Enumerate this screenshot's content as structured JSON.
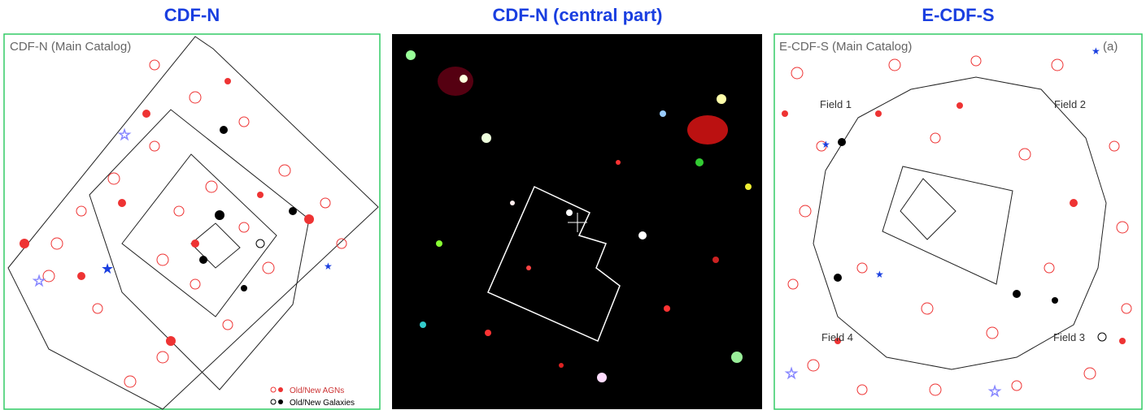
{
  "panels": [
    {
      "title": "CDF-N",
      "label": "CDF-N (Main Catalog)",
      "legend": [
        "Old/New AGNs",
        "Old/New Galaxies"
      ]
    },
    {
      "title": "CDF-N (central part)"
    },
    {
      "title": "E-CDF-S",
      "label": "E-CDF-S (Main Catalog)",
      "tag": "(a)",
      "fields": [
        "Field 1",
        "Field 2",
        "Field 3",
        "Field 4"
      ]
    }
  ]
}
